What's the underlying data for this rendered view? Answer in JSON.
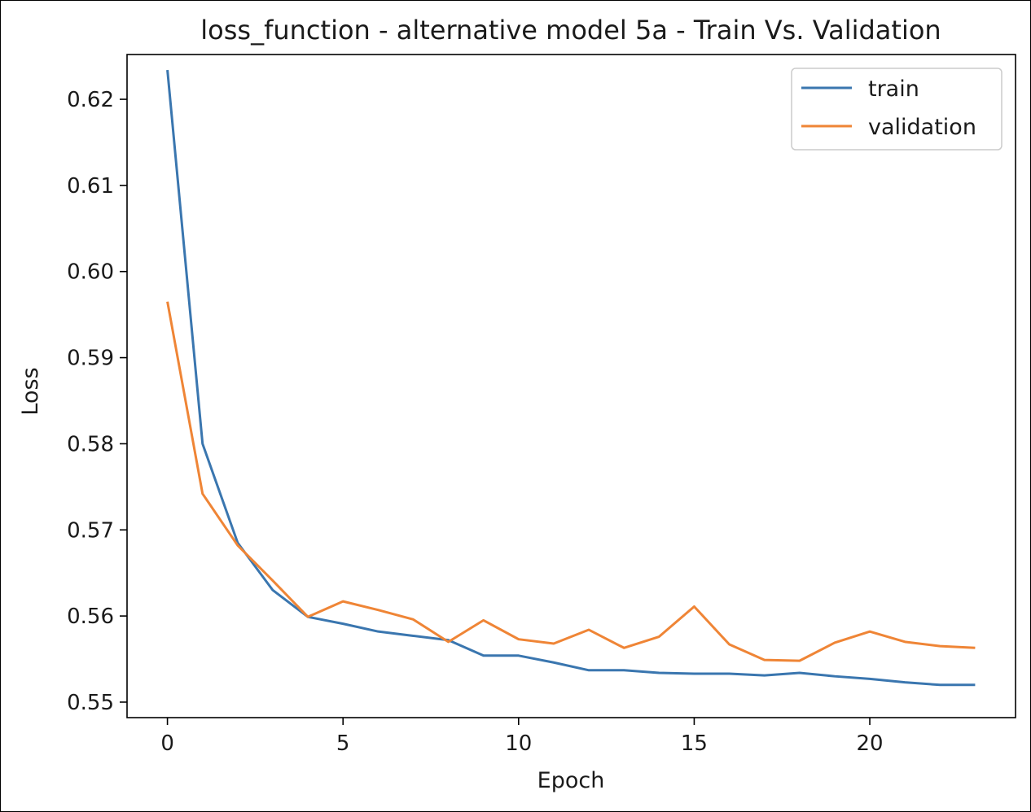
{
  "chart_data": {
    "type": "line",
    "title": "loss_function - alternative model 5a - Train Vs. Validation",
    "xlabel": "Epoch",
    "ylabel": "Loss",
    "xlim": [
      -1.15,
      24.15
    ],
    "ylim": [
      0.5482,
      0.6252
    ],
    "xticks": [
      0,
      5,
      10,
      15,
      20
    ],
    "xtick_labels": [
      "0",
      "5",
      "10",
      "15",
      "20"
    ],
    "yticks": [
      0.55,
      0.56,
      0.57,
      0.58,
      0.59,
      0.6,
      0.61,
      0.62
    ],
    "ytick_labels": [
      "0.55",
      "0.56",
      "0.57",
      "0.58",
      "0.59",
      "0.60",
      "0.61",
      "0.62"
    ],
    "grid": false,
    "legend_position": "top-right",
    "x": [
      0,
      1,
      2,
      3,
      4,
      5,
      6,
      7,
      8,
      9,
      10,
      11,
      12,
      13,
      14,
      15,
      16,
      17,
      18,
      19,
      20,
      21,
      22,
      23
    ],
    "series": [
      {
        "name": "train",
        "color": "#3a76af",
        "values": [
          0.6234,
          0.58,
          0.5685,
          0.563,
          0.5599,
          0.5591,
          0.5582,
          0.5577,
          0.5572,
          0.5554,
          0.5554,
          0.5546,
          0.5537,
          0.5537,
          0.5534,
          0.5533,
          0.5533,
          0.5531,
          0.5534,
          0.553,
          0.5527,
          0.5523,
          0.552,
          0.552
        ]
      },
      {
        "name": "validation",
        "color": "#ef8536",
        "values": [
          0.5965,
          0.5742,
          0.5682,
          0.5641,
          0.5599,
          0.5617,
          0.5607,
          0.5596,
          0.557,
          0.5595,
          0.5573,
          0.5568,
          0.5584,
          0.5563,
          0.5576,
          0.5611,
          0.5567,
          0.5549,
          0.5548,
          0.5569,
          0.5582,
          0.557,
          0.5565,
          0.5563
        ]
      }
    ]
  }
}
